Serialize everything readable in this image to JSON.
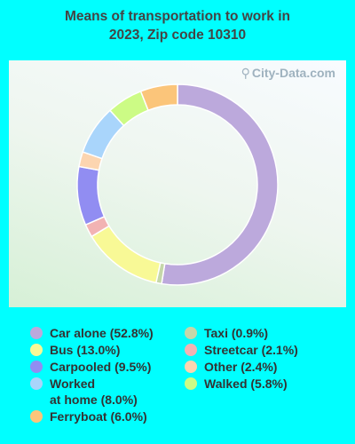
{
  "title_line1": "Means of transportation to work in",
  "title_line2": "2023, Zip code 10310",
  "watermark": "City-Data.com",
  "chart_data": {
    "type": "donut",
    "title": "Means of transportation to work in 2023, Zip code 10310",
    "slices": [
      {
        "label": "Car alone",
        "legend": "Car alone (52.8%)",
        "value": 52.8,
        "color": "#bca9dc"
      },
      {
        "label": "Taxi",
        "legend": "Taxi (0.9%)",
        "value": 0.9,
        "color": "#c5d7a9"
      },
      {
        "label": "Bus",
        "legend": "Bus (13.0%)",
        "value": 13.0,
        "color": "#f8f996"
      },
      {
        "label": "Streetcar",
        "legend": "Streetcar (2.1%)",
        "value": 2.1,
        "color": "#f2b3b3"
      },
      {
        "label": "Carpooled",
        "legend": "Carpooled (9.5%)",
        "value": 9.5,
        "color": "#918df2"
      },
      {
        "label": "Other",
        "legend": "Other (2.4%)",
        "value": 2.4,
        "color": "#fcd5b0"
      },
      {
        "label": "Worked at home",
        "legend": "Worked at home (8.0%)",
        "value": 8.0,
        "color": "#a9d5fb"
      },
      {
        "label": "Walked",
        "legend": "Walked (5.8%)",
        "value": 5.8,
        "color": "#ccfb85"
      },
      {
        "label": "Ferryboat",
        "legend": "Ferryboat (6.0%)",
        "value": 6.0,
        "color": "#fbc57a"
      }
    ],
    "legend_placement": "bottom"
  },
  "legend": {
    "left": [
      {
        "line1": "Car alone (52.8%)",
        "color": "#bca9dc"
      },
      {
        "line1": "Bus (13.0%)",
        "color": "#f8f996"
      },
      {
        "line1": "Carpooled (9.5%)",
        "color": "#918df2"
      },
      {
        "line1": "Worked",
        "line2": "at home (8.0%)",
        "color": "#a9d5fb"
      },
      {
        "line1": "Ferryboat (6.0%)",
        "color": "#fbc57a"
      }
    ],
    "right": [
      {
        "line1": "Taxi (0.9%)",
        "color": "#c5d7a9"
      },
      {
        "line1": "Streetcar (2.1%)",
        "color": "#f2b3b3"
      },
      {
        "line1": "Other (2.4%)",
        "color": "#fcd5b0"
      },
      {
        "line1": "Walked (5.8%)",
        "color": "#ccfb85"
      }
    ]
  }
}
